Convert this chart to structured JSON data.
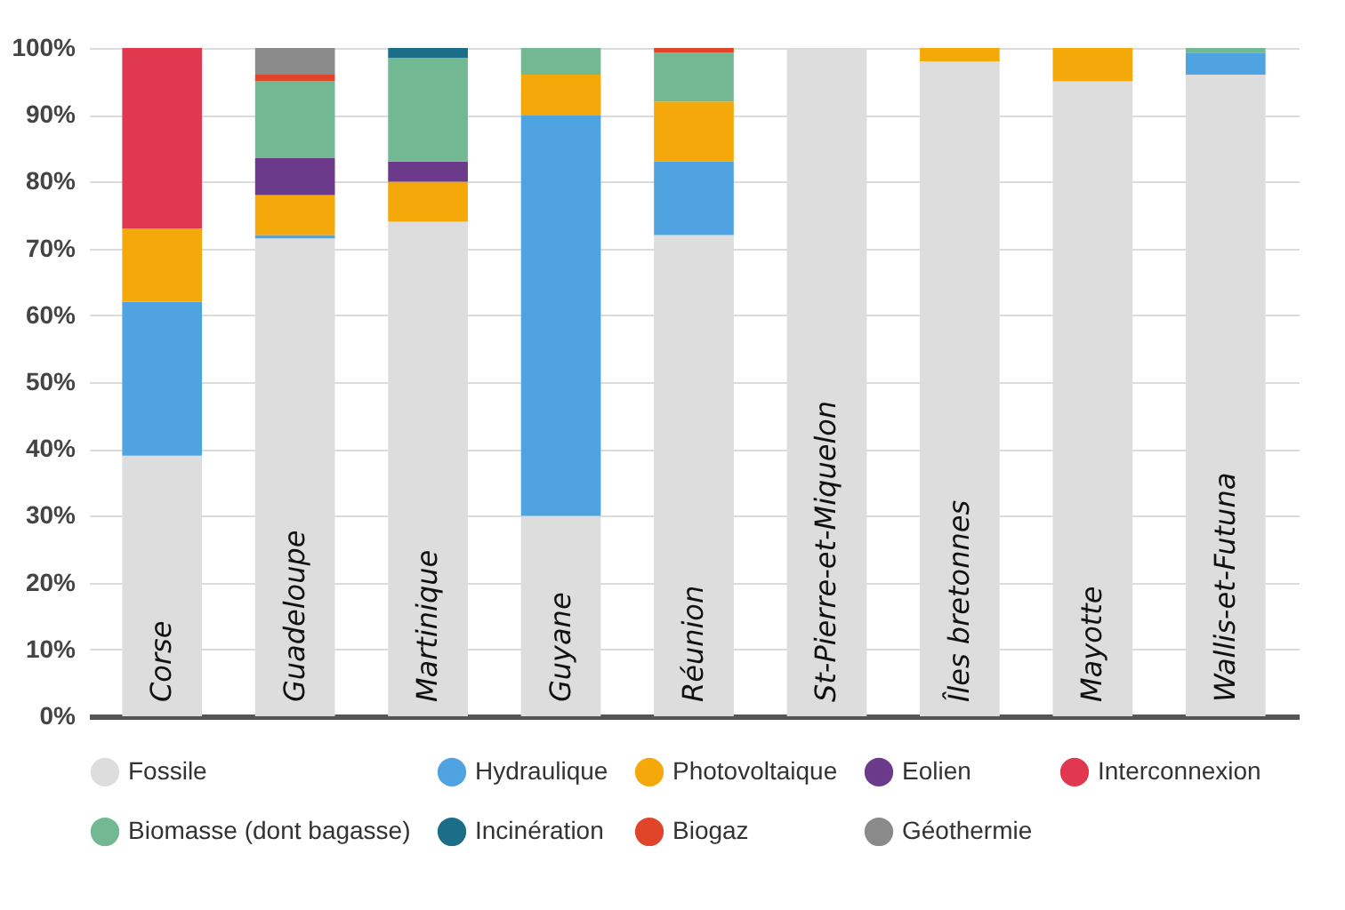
{
  "chart_data": {
    "type": "bar",
    "stacked": true,
    "categories": [
      "Corse",
      "Guadeloupe",
      "Martinique",
      "Guyane",
      "Réunion",
      "St-Pierre-et-Miquelon",
      "Îles bretonnes",
      "Mayotte",
      "Wallis-et-Futuna"
    ],
    "series": [
      {
        "name": "Fossile",
        "color": "#dddddd",
        "values": [
          39,
          71.5,
          74,
          30,
          72,
          100,
          98,
          95,
          96
        ]
      },
      {
        "name": "Hydraulique",
        "color": "#4fa3e0",
        "values": [
          23,
          0.5,
          null,
          60,
          11,
          null,
          null,
          null,
          3.3
        ]
      },
      {
        "name": "Photovoltaique",
        "color": "#f5a80a",
        "values": [
          11,
          6,
          6,
          6,
          9,
          null,
          2,
          5,
          null
        ]
      },
      {
        "name": "Eolien",
        "color": "#6b3a8a",
        "values": [
          null,
          5.5,
          3,
          null,
          null,
          null,
          null,
          null,
          null
        ]
      },
      {
        "name": "Interconnexion",
        "color": "#e0394f",
        "values": [
          27,
          null,
          null,
          null,
          null,
          null,
          null,
          null,
          null
        ]
      },
      {
        "name": "Biomasse (dont bagasse)",
        "color": "#72b892",
        "values": [
          null,
          11.5,
          15.5,
          4,
          7.3,
          null,
          null,
          null,
          0.7
        ]
      },
      {
        "name": "Incinération",
        "color": "#1a6e87",
        "values": [
          null,
          null,
          1.5,
          null,
          null,
          null,
          null,
          null,
          null
        ]
      },
      {
        "name": "Biogaz",
        "color": "#e0452a",
        "values": [
          null,
          1,
          null,
          null,
          0.7,
          null,
          null,
          null,
          null
        ]
      },
      {
        "name": "Géothermie",
        "color": "#8a8a8a",
        "values": [
          null,
          4,
          null,
          null,
          null,
          null,
          null,
          null,
          null
        ]
      }
    ],
    "ylim": [
      0,
      100
    ],
    "yticks": [
      {
        "value": 0,
        "label": "0%"
      },
      {
        "value": 10,
        "label": "10%"
      },
      {
        "value": 20,
        "label": "20%"
      },
      {
        "value": 30,
        "label": "30%"
      },
      {
        "value": 40,
        "label": "40%"
      },
      {
        "value": 50,
        "label": "50%"
      },
      {
        "value": 60,
        "label": "60%"
      },
      {
        "value": 70,
        "label": "70%"
      },
      {
        "value": 80,
        "label": "80%"
      },
      {
        "value": 90,
        "label": "90%"
      },
      {
        "value": 100,
        "label": "100%"
      }
    ],
    "grid": "y",
    "legend": "bottom"
  }
}
